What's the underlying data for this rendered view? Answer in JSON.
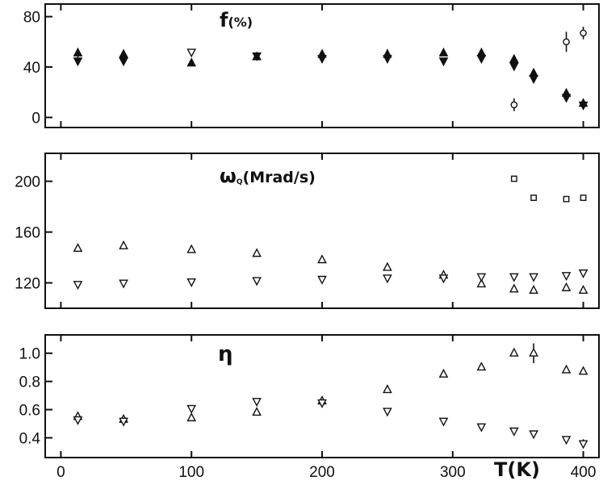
{
  "chart_data": {
    "type": "scatter",
    "x_axis": {
      "label": "T(K)",
      "range": [
        -12,
        412
      ],
      "ticks": [
        0,
        100,
        200,
        300,
        400
      ],
      "tick_labels": [
        "0",
        "100",
        "200",
        "300",
        "400"
      ]
    },
    "panels": [
      {
        "label": "f",
        "label_unit": "(%)",
        "y_range": [
          -8,
          90
        ],
        "y_ticks": [
          0,
          40,
          80
        ],
        "y_tick_labels": [
          "0",
          "40",
          "80"
        ],
        "series": [
          {
            "marker": "triangle-up",
            "fill": "solid",
            "points": [
              [
                13,
                51,
                4
              ],
              [
                48,
                50,
                3
              ],
              [
                100,
                43,
                0
              ],
              [
                150,
                48,
                0
              ],
              [
                200,
                50,
                3
              ],
              [
                250,
                50,
                4
              ],
              [
                293,
                51,
                0
              ],
              [
                322,
                51,
                0
              ],
              [
                347,
                46,
                3
              ],
              [
                362,
                35,
                0
              ],
              [
                387,
                19,
                3
              ],
              [
                400,
                11,
                0
              ]
            ]
          },
          {
            "marker": "triangle-down",
            "fill": "solid",
            "points": [
              [
                13,
                45,
                0
              ],
              [
                48,
                45,
                0
              ],
              [
                150,
                49,
                0
              ],
              [
                200,
                47,
                0
              ],
              [
                250,
                47,
                0
              ],
              [
                293,
                45,
                0
              ],
              [
                322,
                47,
                0
              ],
              [
                347,
                41,
                0
              ],
              [
                362,
                31,
                0
              ],
              [
                387,
                16,
                0
              ],
              [
                400,
                10,
                0
              ]
            ]
          },
          {
            "marker": "triangle-down",
            "fill": "open",
            "points": [
              [
                100,
                52,
                0
              ]
            ]
          },
          {
            "marker": "circle",
            "fill": "open",
            "points": [
              [
                347,
                10,
                5
              ],
              [
                387,
                60,
                8
              ],
              [
                400,
                67,
                5
              ]
            ]
          }
        ]
      },
      {
        "label": "ω",
        "label_sub": "Q",
        "label_unit": "(Mrad/s)",
        "y_range": [
          100,
          222
        ],
        "y_ticks": [
          120,
          160,
          200
        ],
        "y_tick_labels": [
          "120",
          "160",
          "200"
        ],
        "series": [
          {
            "marker": "triangle-up",
            "fill": "open",
            "points": [
              [
                13,
                147,
                0
              ],
              [
                48,
                149,
                0
              ],
              [
                100,
                146,
                0
              ],
              [
                150,
                143,
                0
              ],
              [
                200,
                138,
                0
              ],
              [
                250,
                132,
                0
              ],
              [
                293,
                126,
                0
              ],
              [
                322,
                119,
                0
              ],
              [
                347,
                115,
                0
              ],
              [
                362,
                114,
                0
              ],
              [
                387,
                116,
                0
              ],
              [
                400,
                114,
                0
              ]
            ]
          },
          {
            "marker": "triangle-down",
            "fill": "open",
            "points": [
              [
                13,
                119,
                0
              ],
              [
                48,
                120,
                0
              ],
              [
                100,
                121,
                0
              ],
              [
                150,
                122,
                0
              ],
              [
                200,
                123,
                0
              ],
              [
                250,
                124,
                0
              ],
              [
                293,
                124,
                0
              ],
              [
                322,
                125,
                0
              ],
              [
                347,
                125,
                0
              ],
              [
                362,
                125,
                0
              ],
              [
                387,
                126,
                0
              ],
              [
                400,
                128,
                0
              ]
            ]
          },
          {
            "marker": "square",
            "fill": "open",
            "points": [
              [
                347,
                202,
                0
              ],
              [
                362,
                187,
                0
              ],
              [
                387,
                186,
                0
              ],
              [
                400,
                187,
                0
              ]
            ]
          }
        ]
      },
      {
        "label": "η",
        "y_range": [
          0.26,
          1.13
        ],
        "y_ticks": [
          0.4,
          0.6,
          0.8,
          1.0
        ],
        "y_tick_labels": [
          "0.4",
          "0.6",
          "0.8",
          "1.0"
        ],
        "series": [
          {
            "marker": "triangle-up",
            "fill": "open",
            "points": [
              [
                13,
                0.55,
                0
              ],
              [
                48,
                0.53,
                0
              ],
              [
                100,
                0.54,
                0
              ],
              [
                150,
                0.58,
                0
              ],
              [
                200,
                0.66,
                0
              ],
              [
                250,
                0.74,
                0
              ],
              [
                293,
                0.85,
                0
              ],
              [
                322,
                0.9,
                0
              ],
              [
                347,
                1.0,
                0
              ],
              [
                362,
                1.0,
                0.07
              ],
              [
                387,
                0.88,
                0
              ],
              [
                400,
                0.87,
                0
              ]
            ]
          },
          {
            "marker": "triangle-down",
            "fill": "open",
            "points": [
              [
                13,
                0.53,
                0
              ],
              [
                48,
                0.52,
                0
              ],
              [
                100,
                0.61,
                0
              ],
              [
                150,
                0.66,
                0
              ],
              [
                200,
                0.65,
                0
              ],
              [
                250,
                0.59,
                0
              ],
              [
                293,
                0.52,
                0
              ],
              [
                322,
                0.48,
                0
              ],
              [
                347,
                0.45,
                0
              ],
              [
                362,
                0.43,
                0
              ],
              [
                387,
                0.39,
                0
              ],
              [
                400,
                0.36,
                0.03
              ]
            ]
          }
        ]
      }
    ]
  }
}
